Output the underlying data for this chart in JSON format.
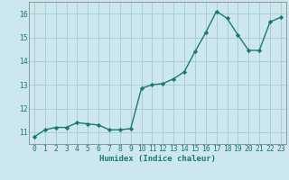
{
  "x": [
    0,
    1,
    2,
    3,
    4,
    5,
    6,
    7,
    8,
    9,
    10,
    11,
    12,
    13,
    14,
    15,
    16,
    17,
    18,
    19,
    20,
    21,
    22,
    23
  ],
  "y": [
    10.8,
    11.1,
    11.2,
    11.2,
    11.4,
    11.35,
    11.3,
    11.1,
    11.1,
    11.15,
    12.85,
    13.0,
    13.05,
    13.25,
    13.55,
    14.4,
    15.2,
    16.1,
    15.8,
    15.1,
    14.45,
    14.45,
    15.65,
    15.85
  ],
  "line_color": "#1a7a6e",
  "marker": "D",
  "marker_size": 2.2,
  "bg_color": "#cce8ee",
  "grid_color": "#aacdd4",
  "xlabel": "Humidex (Indice chaleur)",
  "xlim": [
    -0.5,
    23.5
  ],
  "ylim": [
    10.5,
    16.5
  ],
  "yticks": [
    11,
    12,
    13,
    14,
    15,
    16
  ],
  "xticks": [
    0,
    1,
    2,
    3,
    4,
    5,
    6,
    7,
    8,
    9,
    10,
    11,
    12,
    13,
    14,
    15,
    16,
    17,
    18,
    19,
    20,
    21,
    22,
    23
  ],
  "xlabel_fontsize": 6.5,
  "tick_fontsize": 5.8,
  "spine_color": "#888888",
  "line_width": 1.0
}
